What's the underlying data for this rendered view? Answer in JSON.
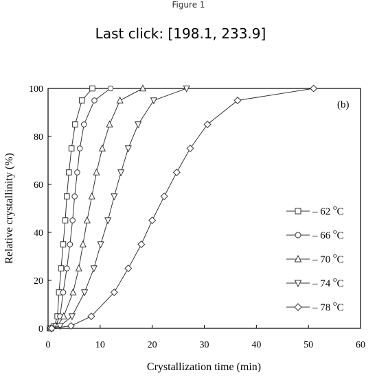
{
  "window": {
    "title": "Figure 1"
  },
  "status": {
    "last_click_label": "Last click: [198.1, 233.9]"
  },
  "chart_data": {
    "type": "line",
    "panel_label": "(b)",
    "xlabel": "Crystallization time (min)",
    "ylabel": "Relative crystallinity (%)",
    "xlim": [
      0,
      60
    ],
    "ylim": [
      0,
      100
    ],
    "xticks": [
      0,
      10,
      20,
      30,
      40,
      50,
      60
    ],
    "yticks": [
      0,
      20,
      40,
      60,
      80,
      100
    ],
    "grid": false,
    "legend_position": "right",
    "series": [
      {
        "name": "62",
        "marker": "square",
        "x": [
          0.3,
          1.2,
          1.8,
          2.1,
          2.5,
          2.9,
          3.3,
          3.6,
          4.0,
          4.5,
          5.2,
          6.5,
          8.5
        ],
        "y": [
          0,
          1,
          5,
          15,
          25,
          35,
          45,
          55,
          65,
          75,
          85,
          95,
          100
        ]
      },
      {
        "name": "66",
        "marker": "circle",
        "x": [
          0.4,
          1.4,
          2.3,
          2.9,
          3.6,
          4.2,
          4.7,
          5.1,
          5.6,
          6.1,
          6.9,
          8.9,
          12.0
        ],
        "y": [
          0,
          1,
          5,
          15,
          25,
          35,
          45,
          55,
          65,
          75,
          85,
          95,
          100
        ]
      },
      {
        "name": "70",
        "marker": "triangle-up",
        "x": [
          0.5,
          1.8,
          3.0,
          4.8,
          5.9,
          6.7,
          7.5,
          8.4,
          9.3,
          10.4,
          11.8,
          13.8,
          18.2
        ],
        "y": [
          0,
          1,
          5,
          15,
          25,
          35,
          45,
          55,
          65,
          75,
          85,
          95,
          100
        ]
      },
      {
        "name": "74",
        "marker": "triangle-down",
        "x": [
          0.6,
          2.3,
          4.6,
          7.0,
          8.8,
          10.1,
          11.5,
          12.7,
          14.0,
          15.4,
          17.3,
          20.3,
          26.6
        ],
        "y": [
          0,
          1,
          5,
          15,
          25,
          35,
          45,
          55,
          65,
          75,
          85,
          95,
          100
        ]
      },
      {
        "name": "78",
        "marker": "diamond",
        "x": [
          0.7,
          4.4,
          8.3,
          12.7,
          15.4,
          17.9,
          20.0,
          22.3,
          24.7,
          27.3,
          30.6,
          36.4,
          51.0
        ],
        "y": [
          0,
          1,
          5,
          15,
          25,
          35,
          45,
          55,
          65,
          75,
          85,
          95,
          100
        ]
      }
    ],
    "legend_unit": "C"
  }
}
